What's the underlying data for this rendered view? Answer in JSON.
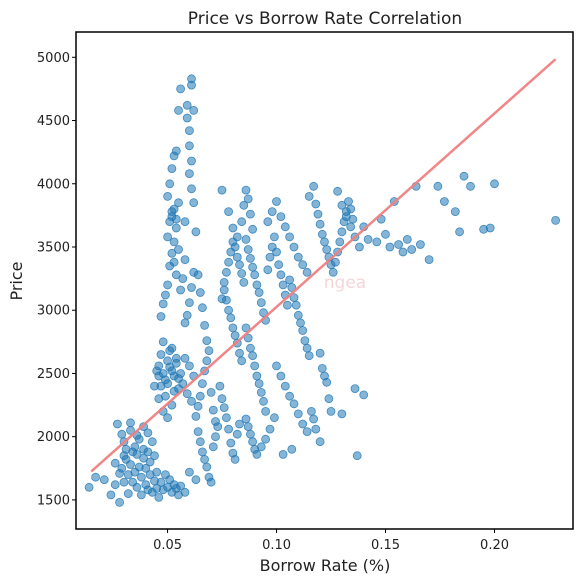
{
  "chart_data": {
    "type": "scatter",
    "title": "Price vs Borrow Rate Correlation",
    "xlabel": "Borrow Rate (%)",
    "ylabel": "Price",
    "xlim": [
      0.008,
      0.236
    ],
    "ylim": [
      1270,
      5200
    ],
    "xticks": [
      "0.05",
      "0.10",
      "0.15",
      "0.20"
    ],
    "xtick_values": [
      0.05,
      0.1,
      0.15,
      0.2
    ],
    "yticks": [
      "1500",
      "2000",
      "2500",
      "3000",
      "3500",
      "4000",
      "4500",
      "5000"
    ],
    "ytick_values": [
      1500,
      2000,
      2500,
      3000,
      3500,
      4000,
      4500,
      5000
    ],
    "grid": false,
    "watermark": "ngea",
    "point_color": "#1f77b4",
    "trend_color": "#f08080",
    "trend_line": {
      "x": [
        0.015,
        0.228
      ],
      "y": [
        1725,
        4985
      ]
    },
    "points": [
      [
        0.014,
        1600
      ],
      [
        0.017,
        1680
      ],
      [
        0.021,
        1660
      ],
      [
        0.024,
        1540
      ],
      [
        0.026,
        1620
      ],
      [
        0.028,
        1480
      ],
      [
        0.029,
        1750
      ],
      [
        0.03,
        1850
      ],
      [
        0.031,
        1900
      ],
      [
        0.031,
        1820
      ],
      [
        0.032,
        1700
      ],
      [
        0.032,
        1550
      ],
      [
        0.033,
        2050
      ],
      [
        0.033,
        1780
      ],
      [
        0.034,
        1880
      ],
      [
        0.034,
        1640
      ],
      [
        0.035,
        1920
      ],
      [
        0.035,
        1720
      ],
      [
        0.036,
        1860
      ],
      [
        0.036,
        1600
      ],
      [
        0.037,
        1980
      ],
      [
        0.037,
        1760
      ],
      [
        0.038,
        1680
      ],
      [
        0.038,
        1540
      ],
      [
        0.039,
        1830
      ],
      [
        0.039,
        1900
      ],
      [
        0.04,
        1620
      ],
      [
        0.04,
        1750
      ],
      [
        0.041,
        1880
      ],
      [
        0.041,
        1580
      ],
      [
        0.042,
        1700
      ],
      [
        0.042,
        1800
      ],
      [
        0.043,
        1960
      ],
      [
        0.043,
        1560
      ],
      [
        0.044,
        1650
      ],
      [
        0.044,
        1850
      ],
      [
        0.045,
        1590
      ],
      [
        0.045,
        1720
      ],
      [
        0.046,
        1520
      ],
      [
        0.047,
        1640
      ],
      [
        0.048,
        1580
      ],
      [
        0.049,
        1700
      ],
      [
        0.05,
        1600
      ],
      [
        0.051,
        1660
      ],
      [
        0.052,
        1560
      ],
      [
        0.053,
        1620
      ],
      [
        0.054,
        1590
      ],
      [
        0.055,
        1540
      ],
      [
        0.056,
        1610
      ],
      [
        0.058,
        1560
      ],
      [
        0.027,
        2100
      ],
      [
        0.029,
        2020
      ],
      [
        0.03,
        1960
      ],
      [
        0.033,
        2110
      ],
      [
        0.036,
        2010
      ],
      [
        0.039,
        2080
      ],
      [
        0.041,
        2030
      ],
      [
        0.026,
        1790
      ],
      [
        0.028,
        1710
      ],
      [
        0.03,
        1640
      ],
      [
        0.046,
        2300
      ],
      [
        0.047,
        2400
      ],
      [
        0.048,
        2500
      ],
      [
        0.049,
        2450
      ],
      [
        0.05,
        2600
      ],
      [
        0.051,
        2550
      ],
      [
        0.052,
        2700
      ],
      [
        0.053,
        2480
      ],
      [
        0.054,
        2620
      ],
      [
        0.055,
        2380
      ],
      [
        0.046,
        2560
      ],
      [
        0.047,
        2650
      ],
      [
        0.048,
        2750
      ],
      [
        0.049,
        2320
      ],
      [
        0.05,
        2420
      ],
      [
        0.051,
        2680
      ],
      [
        0.052,
        2520
      ],
      [
        0.053,
        2360
      ],
      [
        0.054,
        2580
      ],
      [
        0.055,
        2460
      ],
      [
        0.056,
        2500
      ],
      [
        0.057,
        2420
      ],
      [
        0.058,
        2620
      ],
      [
        0.059,
        2340
      ],
      [
        0.06,
        2560
      ],
      [
        0.061,
        2280
      ],
      [
        0.062,
        2480
      ],
      [
        0.048,
        2200
      ],
      [
        0.05,
        2150
      ],
      [
        0.052,
        2250
      ],
      [
        0.047,
        2950
      ],
      [
        0.048,
        3050
      ],
      [
        0.049,
        3120
      ],
      [
        0.05,
        3200
      ],
      [
        0.051,
        3350
      ],
      [
        0.052,
        3450
      ],
      [
        0.053,
        3540
      ],
      [
        0.054,
        3650
      ],
      [
        0.05,
        3580
      ],
      [
        0.051,
        3700
      ],
      [
        0.052,
        3740
      ],
      [
        0.053,
        3800
      ],
      [
        0.054,
        3720
      ],
      [
        0.055,
        3850
      ],
      [
        0.05,
        3900
      ],
      [
        0.051,
        4000
      ],
      [
        0.052,
        4120
      ],
      [
        0.053,
        4220
      ],
      [
        0.054,
        4260
      ],
      [
        0.052,
        3780
      ],
      [
        0.053,
        3380
      ],
      [
        0.055,
        3480
      ],
      [
        0.054,
        3280
      ],
      [
        0.056,
        3160
      ],
      [
        0.057,
        3250
      ],
      [
        0.058,
        2900
      ],
      [
        0.059,
        2960
      ],
      [
        0.06,
        3060
      ],
      [
        0.061,
        3180
      ],
      [
        0.062,
        3300
      ],
      [
        0.055,
        4580
      ],
      [
        0.056,
        4750
      ],
      [
        0.059,
        4620
      ],
      [
        0.059,
        4520
      ],
      [
        0.06,
        4420
      ],
      [
        0.061,
        4780
      ],
      [
        0.061,
        4830
      ],
      [
        0.062,
        4580
      ],
      [
        0.06,
        4300
      ],
      [
        0.061,
        4180
      ],
      [
        0.06,
        4080
      ],
      [
        0.061,
        3960
      ],
      [
        0.062,
        3850
      ],
      [
        0.058,
        3700
      ],
      [
        0.063,
        3620
      ],
      [
        0.064,
        3280
      ],
      [
        0.065,
        3140
      ],
      [
        0.066,
        3020
      ],
      [
        0.067,
        2880
      ],
      [
        0.068,
        2760
      ],
      [
        0.064,
        2040
      ],
      [
        0.065,
        1960
      ],
      [
        0.066,
        1880
      ],
      [
        0.067,
        1820
      ],
      [
        0.068,
        1760
      ],
      [
        0.069,
        1680
      ],
      [
        0.07,
        1640
      ],
      [
        0.071,
        1920
      ],
      [
        0.072,
        2000
      ],
      [
        0.073,
        2080
      ],
      [
        0.063,
        2160
      ],
      [
        0.064,
        2240
      ],
      [
        0.065,
        2320
      ],
      [
        0.066,
        2420
      ],
      [
        0.067,
        2520
      ],
      [
        0.068,
        2600
      ],
      [
        0.069,
        2680
      ],
      [
        0.07,
        2350
      ],
      [
        0.071,
        2210
      ],
      [
        0.072,
        2120
      ],
      [
        0.074,
        2400
      ],
      [
        0.075,
        2300
      ],
      [
        0.076,
        2230
      ],
      [
        0.077,
        2150
      ],
      [
        0.078,
        2060
      ],
      [
        0.079,
        1950
      ],
      [
        0.08,
        1870
      ],
      [
        0.081,
        1820
      ],
      [
        0.082,
        2020
      ],
      [
        0.083,
        2100
      ],
      [
        0.075,
        3090
      ],
      [
        0.076,
        3160
      ],
      [
        0.077,
        3080
      ],
      [
        0.078,
        3000
      ],
      [
        0.079,
        2940
      ],
      [
        0.08,
        2860
      ],
      [
        0.081,
        2800
      ],
      [
        0.082,
        2740
      ],
      [
        0.083,
        2660
      ],
      [
        0.084,
        2600
      ],
      [
        0.076,
        3220
      ],
      [
        0.077,
        3300
      ],
      [
        0.078,
        3380
      ],
      [
        0.079,
        3460
      ],
      [
        0.08,
        3540
      ],
      [
        0.081,
        3500
      ],
      [
        0.082,
        3420
      ],
      [
        0.083,
        3360
      ],
      [
        0.084,
        3290
      ],
      [
        0.085,
        3220
      ],
      [
        0.075,
        3950
      ],
      [
        0.078,
        3780
      ],
      [
        0.08,
        3650
      ],
      [
        0.082,
        3580
      ],
      [
        0.084,
        3700
      ],
      [
        0.085,
        3830
      ],
      [
        0.086,
        3950
      ],
      [
        0.087,
        3880
      ],
      [
        0.088,
        3760
      ],
      [
        0.089,
        3640
      ],
      [
        0.086,
        3560
      ],
      [
        0.087,
        3480
      ],
      [
        0.088,
        3410
      ],
      [
        0.089,
        3340
      ],
      [
        0.09,
        3280
      ],
      [
        0.091,
        3200
      ],
      [
        0.092,
        3140
      ],
      [
        0.093,
        3060
      ],
      [
        0.094,
        2980
      ],
      [
        0.095,
        2920
      ],
      [
        0.086,
        2860
      ],
      [
        0.087,
        2780
      ],
      [
        0.088,
        2700
      ],
      [
        0.089,
        2640
      ],
      [
        0.09,
        2560
      ],
      [
        0.091,
        2480
      ],
      [
        0.092,
        2420
      ],
      [
        0.093,
        2350
      ],
      [
        0.094,
        2280
      ],
      [
        0.095,
        2200
      ],
      [
        0.086,
        2140
      ],
      [
        0.087,
        2080
      ],
      [
        0.088,
        2020
      ],
      [
        0.089,
        1960
      ],
      [
        0.09,
        1900
      ],
      [
        0.091,
        1860
      ],
      [
        0.093,
        1920
      ],
      [
        0.095,
        1980
      ],
      [
        0.097,
        2060
      ],
      [
        0.099,
        2150
      ],
      [
        0.096,
        3320
      ],
      [
        0.097,
        3420
      ],
      [
        0.098,
        3500
      ],
      [
        0.099,
        3580
      ],
      [
        0.1,
        3460
      ],
      [
        0.101,
        3360
      ],
      [
        0.102,
        3280
      ],
      [
        0.103,
        3200
      ],
      [
        0.104,
        3120
      ],
      [
        0.105,
        3040
      ],
      [
        0.096,
        3700
      ],
      [
        0.098,
        3780
      ],
      [
        0.1,
        3860
      ],
      [
        0.102,
        3740
      ],
      [
        0.104,
        3660
      ],
      [
        0.106,
        3580
      ],
      [
        0.108,
        3500
      ],
      [
        0.11,
        3420
      ],
      [
        0.112,
        3360
      ],
      [
        0.114,
        3300
      ],
      [
        0.106,
        3240
      ],
      [
        0.107,
        3180
      ],
      [
        0.108,
        3100
      ],
      [
        0.109,
        3040
      ],
      [
        0.11,
        2960
      ],
      [
        0.111,
        2900
      ],
      [
        0.112,
        2840
      ],
      [
        0.113,
        2760
      ],
      [
        0.114,
        2700
      ],
      [
        0.115,
        2640
      ],
      [
        0.1,
        2560
      ],
      [
        0.102,
        2480
      ],
      [
        0.104,
        2400
      ],
      [
        0.106,
        2320
      ],
      [
        0.108,
        2260
      ],
      [
        0.11,
        2180
      ],
      [
        0.112,
        2100
      ],
      [
        0.114,
        2040
      ],
      [
        0.103,
        1860
      ],
      [
        0.107,
        1900
      ],
      [
        0.115,
        3900
      ],
      [
        0.117,
        3980
      ],
      [
        0.118,
        3840
      ],
      [
        0.119,
        3760
      ],
      [
        0.12,
        3680
      ],
      [
        0.121,
        3600
      ],
      [
        0.122,
        3540
      ],
      [
        0.123,
        3480
      ],
      [
        0.124,
        3420
      ],
      [
        0.125,
        3360
      ],
      [
        0.116,
        2200
      ],
      [
        0.117,
        2140
      ],
      [
        0.118,
        2060
      ],
      [
        0.12,
        1960
      ],
      [
        0.121,
        2540
      ],
      [
        0.122,
        2480
      ],
      [
        0.123,
        2430
      ],
      [
        0.124,
        2300
      ],
      [
        0.125,
        2200
      ],
      [
        0.12,
        2660
      ],
      [
        0.126,
        3300
      ],
      [
        0.127,
        3380
      ],
      [
        0.128,
        3460
      ],
      [
        0.129,
        3540
      ],
      [
        0.13,
        3620
      ],
      [
        0.131,
        3700
      ],
      [
        0.132,
        3780
      ],
      [
        0.133,
        3860
      ],
      [
        0.134,
        3800
      ],
      [
        0.135,
        3720
      ],
      [
        0.128,
        3940
      ],
      [
        0.13,
        3830
      ],
      [
        0.132,
        3740
      ],
      [
        0.134,
        3660
      ],
      [
        0.136,
        3580
      ],
      [
        0.138,
        3500
      ],
      [
        0.14,
        3660
      ],
      [
        0.142,
        3560
      ],
      [
        0.13,
        2180
      ],
      [
        0.136,
        2380
      ],
      [
        0.137,
        1850
      ],
      [
        0.14,
        2330
      ],
      [
        0.146,
        3540
      ],
      [
        0.148,
        3720
      ],
      [
        0.15,
        3600
      ],
      [
        0.152,
        3500
      ],
      [
        0.154,
        3860
      ],
      [
        0.156,
        3520
      ],
      [
        0.158,
        3460
      ],
      [
        0.16,
        3560
      ],
      [
        0.162,
        3480
      ],
      [
        0.164,
        3980
      ],
      [
        0.166,
        3520
      ],
      [
        0.17,
        3400
      ],
      [
        0.174,
        3980
      ],
      [
        0.177,
        3860
      ],
      [
        0.182,
        3780
      ],
      [
        0.184,
        3620
      ],
      [
        0.186,
        4060
      ],
      [
        0.189,
        3980
      ],
      [
        0.195,
        3640
      ],
      [
        0.198,
        3650
      ],
      [
        0.2,
        4000
      ],
      [
        0.228,
        3710
      ],
      [
        0.06,
        1720
      ],
      [
        0.063,
        1660
      ],
      [
        0.044,
        2400
      ],
      [
        0.046,
        2480
      ],
      [
        0.045,
        2520
      ],
      [
        0.058,
        3400
      ]
    ]
  }
}
